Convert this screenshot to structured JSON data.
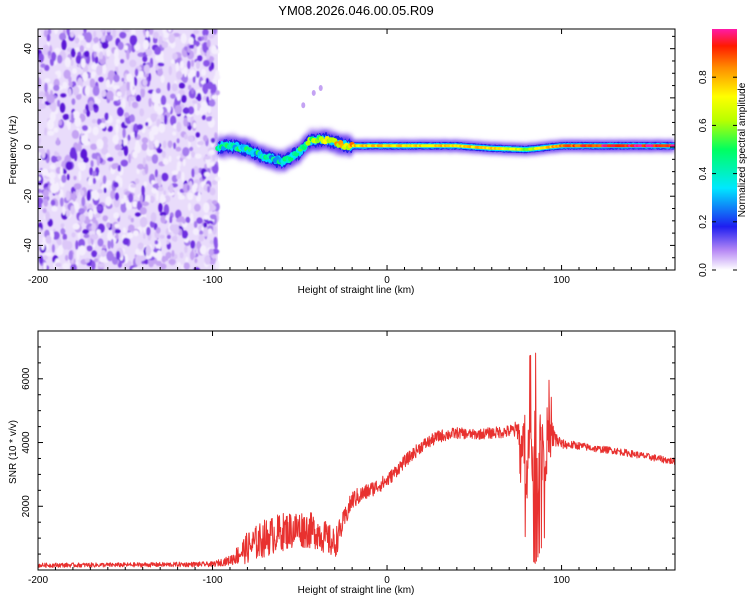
{
  "title": "YM08.2026.046.00.05.R09",
  "chart_data": [
    {
      "type": "heatmap",
      "name": "spectrogram",
      "title": "YM08.2026.046.00.05.R09",
      "xlabel": "Height of straight line (km)",
      "ylabel": "Frequency (Hz)",
      "xlim": [
        -200,
        165
      ],
      "ylim": [
        -50,
        48
      ],
      "xticks": [
        -200,
        -100,
        0,
        100
      ],
      "yticks": [
        -40,
        -20,
        0,
        20,
        40
      ],
      "noise_region_x": [
        -200,
        -97
      ],
      "ridge": {
        "x": [
          -97,
          -90,
          -80,
          -70,
          -60,
          -50,
          -45,
          -40,
          -35,
          -30,
          -25,
          -20,
          -10,
          0,
          20,
          40,
          60,
          80,
          100,
          120,
          140,
          165
        ],
        "freq": [
          0,
          0.5,
          -1,
          -4,
          -6,
          -2,
          2,
          3,
          3,
          2,
          0.8,
          0.5,
          0.5,
          0.5,
          0.5,
          0.5,
          -0.5,
          -1,
          0.5,
          0.5,
          0.5,
          0.5
        ],
        "amp": [
          0.35,
          0.4,
          0.4,
          0.38,
          0.4,
          0.45,
          0.55,
          0.6,
          0.65,
          0.7,
          0.72,
          0.74,
          0.76,
          0.75,
          0.75,
          0.76,
          0.75,
          0.6,
          0.85,
          0.92,
          0.95,
          0.95
        ]
      },
      "colorbar": {
        "label": "Normalized spectral amplitude",
        "range": [
          0,
          1
        ],
        "ticks": [
          "0.0",
          "0.2",
          "0.4",
          "0.6",
          "0.8"
        ]
      }
    },
    {
      "type": "line",
      "name": "snr",
      "xlabel": "Height of straight line (km)",
      "ylabel": "SNR (10 * v/v)",
      "xlim": [
        -200,
        165
      ],
      "ylim": [
        0,
        7500
      ],
      "xticks": [
        -200,
        -100,
        0,
        100
      ],
      "yticks": [
        2000,
        4000,
        6000
      ],
      "color": "#e8312f",
      "series": [
        {
          "name": "SNR",
          "x": [
            -200,
            -150,
            -100,
            -90,
            -80,
            -70,
            -60,
            -50,
            -40,
            -30,
            -25,
            -20,
            -10,
            0,
            10,
            20,
            30,
            40,
            50,
            60,
            70,
            75,
            80,
            85,
            90,
            95,
            100,
            110,
            120,
            130,
            140,
            150,
            160,
            165
          ],
          "values": [
            150,
            160,
            180,
            300,
            700,
            1000,
            1200,
            1300,
            1200,
            800,
            1500,
            2200,
            2500,
            2800,
            3400,
            3900,
            4200,
            4300,
            4250,
            4300,
            4350,
            4400,
            3600,
            3500,
            4000,
            4200,
            3950,
            3900,
            3800,
            3750,
            3650,
            3550,
            3450,
            3400
          ],
          "spread": [
            70,
            70,
            80,
            150,
            500,
            600,
            600,
            600,
            550,
            500,
            350,
            300,
            250,
            220,
            200,
            200,
            200,
            180,
            160,
            180,
            200,
            300,
            1400,
            1500,
            1400,
            400,
            150,
            120,
            110,
            110,
            110,
            110,
            110,
            110
          ]
        }
      ]
    }
  ]
}
